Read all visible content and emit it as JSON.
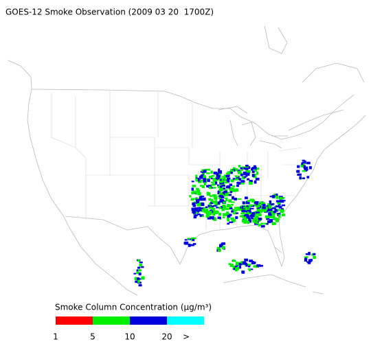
{
  "header": {
    "title": "GOES-12 Smoke Observation (2009 03 20  1700Z)"
  },
  "legend": {
    "title": "Smoke Column Concentration (μg/m³)",
    "colors": [
      "#ff0000",
      "#00ee00",
      "#0000dd",
      "#00ffff"
    ],
    "labels": [
      "1",
      "5",
      "10",
      "20",
      ">"
    ]
  }
}
